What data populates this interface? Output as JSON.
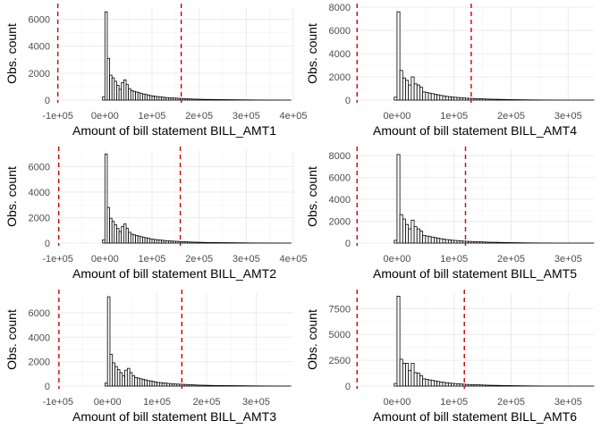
{
  "chart_data": [
    {
      "type": "bar",
      "title": "",
      "xlabel": "Amount of bill statement BILL_AMT1",
      "ylabel": "Obs. count",
      "xlim": [
        -105000,
        400000
      ],
      "ylim": [
        0,
        6900
      ],
      "xticks": [
        -100000,
        0,
        100000,
        200000,
        300000,
        400000
      ],
      "xtick_labels": [
        "-1e+05",
        "0e+00",
        "1e+05",
        "2e+05",
        "3e+05",
        "4e+05"
      ],
      "yticks": [
        0,
        2000,
        4000,
        6000
      ],
      "ytick_labels": [
        "0",
        "2000",
        "4000",
        "6000"
      ],
      "vlines": [
        -100000,
        162000
      ],
      "bin_start": -5000,
      "bin_width": 5000,
      "counts": [
        250,
        6550,
        3100,
        1850,
        1650,
        1400,
        1100,
        800,
        1300,
        1500,
        1150,
        850,
        700,
        650,
        600,
        550,
        500,
        450,
        420,
        380,
        330,
        300,
        280,
        260,
        240,
        220,
        200,
        180,
        170,
        160,
        150,
        140,
        130,
        120,
        110,
        100,
        90,
        80,
        75,
        70,
        65,
        60,
        55,
        50,
        48,
        46,
        44,
        42,
        40,
        38,
        36,
        34,
        32,
        30,
        28,
        26,
        24,
        22,
        20,
        18,
        16,
        14,
        12,
        10,
        10,
        8,
        8,
        6,
        6,
        5,
        5,
        4,
        4,
        3,
        3,
        3,
        2,
        2,
        2,
        2
      ]
    },
    {
      "type": "bar",
      "title": "",
      "xlabel": "Amount of bill statement BILL_AMT4",
      "ylabel": "Obs. count",
      "xlim": [
        -72000,
        345000
      ],
      "ylim": [
        0,
        8000
      ],
      "xticks": [
        0,
        100000,
        200000,
        300000
      ],
      "xtick_labels": [
        "0e+00",
        "1e+05",
        "2e+05",
        "3e+05"
      ],
      "yticks": [
        0,
        2000,
        4000,
        6000,
        8000
      ],
      "ytick_labels": [
        "0",
        "2000",
        "4000",
        "6000",
        "8000"
      ],
      "vlines": [
        -70000,
        130000
      ],
      "bin_start": -5000,
      "bin_width": 5000,
      "counts": [
        250,
        7600,
        2550,
        1900,
        1700,
        1300,
        2000,
        1400,
        1300,
        1100,
        700,
        650,
        600,
        550,
        500,
        450,
        400,
        360,
        320,
        290,
        260,
        240,
        220,
        200,
        180,
        160,
        150,
        140,
        130,
        120,
        110,
        100,
        90,
        80,
        75,
        70,
        65,
        60,
        55,
        50,
        45,
        40,
        36,
        32,
        28,
        24,
        20,
        18,
        16,
        14,
        12,
        10,
        8,
        6,
        5,
        4,
        3,
        3,
        2,
        2,
        2,
        2,
        1,
        1,
        1,
        1,
        1,
        1,
        1,
        1
      ]
    },
    {
      "type": "bar",
      "title": "",
      "xlabel": "Amount of bill statement BILL_AMT2",
      "ylabel": "Obs. count",
      "xlim": [
        -105000,
        400000
      ],
      "ylim": [
        0,
        7300
      ],
      "xticks": [
        -100000,
        0,
        100000,
        200000,
        300000,
        400000
      ],
      "xtick_labels": [
        "-1e+05",
        "0e+00",
        "1e+05",
        "2e+05",
        "3e+05",
        "4e+05"
      ],
      "yticks": [
        0,
        2000,
        4000,
        6000
      ],
      "ytick_labels": [
        "0",
        "2000",
        "4000",
        "6000"
      ],
      "vlines": [
        -98000,
        160000
      ],
      "bin_start": -5000,
      "bin_width": 5000,
      "counts": [
        250,
        7000,
        2800,
        1950,
        1700,
        1450,
        1150,
        900,
        1300,
        1500,
        1150,
        850,
        700,
        650,
        600,
        550,
        500,
        450,
        420,
        380,
        330,
        300,
        280,
        260,
        240,
        220,
        200,
        180,
        170,
        160,
        150,
        140,
        130,
        120,
        110,
        100,
        90,
        80,
        75,
        70,
        65,
        60,
        55,
        50,
        48,
        46,
        44,
        42,
        40,
        38,
        36,
        34,
        32,
        30,
        28,
        26,
        24,
        22,
        20,
        18,
        16,
        14,
        12,
        10,
        10,
        8,
        8,
        6,
        6,
        5,
        5,
        4,
        4,
        3,
        3,
        3,
        2,
        2,
        2,
        2
      ]
    },
    {
      "type": "bar",
      "title": "",
      "xlabel": "Amount of bill statement BILL_AMT5",
      "ylabel": "Obs. count",
      "xlim": [
        -72000,
        345000
      ],
      "ylim": [
        0,
        8500
      ],
      "xticks": [
        0,
        100000,
        200000,
        300000
      ],
      "xtick_labels": [
        "0e+00",
        "1e+05",
        "2e+05",
        "3e+05"
      ],
      "yticks": [
        0,
        2000,
        4000,
        6000,
        8000
      ],
      "ytick_labels": [
        "0",
        "2000",
        "4000",
        "6000",
        "8000"
      ],
      "vlines": [
        -70000,
        120000
      ],
      "bin_start": -5000,
      "bin_width": 5000,
      "counts": [
        250,
        8100,
        2600,
        2200,
        1700,
        1300,
        2100,
        1500,
        1300,
        1100,
        700,
        650,
        600,
        550,
        500,
        450,
        400,
        360,
        320,
        290,
        260,
        240,
        220,
        200,
        180,
        160,
        150,
        140,
        130,
        120,
        110,
        100,
        90,
        80,
        75,
        70,
        65,
        60,
        55,
        50,
        45,
        40,
        36,
        32,
        28,
        24,
        20,
        18,
        16,
        14,
        12,
        10,
        8,
        6,
        5,
        4,
        3,
        3,
        2,
        2,
        2,
        2,
        1,
        1,
        1,
        1,
        1,
        1,
        1,
        1
      ]
    },
    {
      "type": "bar",
      "title": "",
      "xlabel": "Amount of bill statement BILL_AMT3",
      "ylabel": "Obs. count",
      "xlim": [
        -105000,
        375000
      ],
      "ylim": [
        0,
        7600
      ],
      "xticks": [
        -100000,
        0,
        100000,
        200000,
        300000
      ],
      "xtick_labels": [
        "-1e+05",
        "0e+00",
        "1e+05",
        "2e+05",
        "3e+05"
      ],
      "yticks": [
        0,
        2000,
        4000,
        6000
      ],
      "ytick_labels": [
        "0",
        "2000",
        "4000",
        "6000"
      ],
      "vlines": [
        -98000,
        150000
      ],
      "bin_start": -5000,
      "bin_width": 5000,
      "counts": [
        250,
        7300,
        2600,
        1900,
        1600,
        1350,
        1100,
        850,
        1300,
        1450,
        1100,
        850,
        700,
        650,
        600,
        550,
        500,
        450,
        420,
        380,
        330,
        300,
        280,
        260,
        240,
        220,
        200,
        180,
        170,
        160,
        150,
        140,
        130,
        120,
        110,
        100,
        90,
        80,
        75,
        70,
        65,
        60,
        55,
        50,
        48,
        46,
        44,
        42,
        40,
        38,
        36,
        34,
        32,
        30,
        28,
        26,
        24,
        22,
        20,
        18,
        16,
        14,
        12,
        10,
        10,
        8,
        8,
        6,
        6,
        5,
        5,
        4,
        4,
        3,
        3
      ]
    },
    {
      "type": "bar",
      "title": "",
      "xlabel": "Amount of bill statement BILL_AMT6",
      "ylabel": "Obs. count",
      "xlim": [
        -72000,
        345000
      ],
      "ylim": [
        0,
        9000
      ],
      "xticks": [
        0,
        100000,
        200000,
        300000
      ],
      "xtick_labels": [
        "0e+00",
        "1e+05",
        "2e+05",
        "3e+05"
      ],
      "yticks": [
        0,
        2500,
        5000,
        7500
      ],
      "ytick_labels": [
        "0",
        "2500",
        "5000",
        "7500"
      ],
      "vlines": [
        -70000,
        118000
      ],
      "bin_start": -5000,
      "bin_width": 5000,
      "counts": [
        250,
        8700,
        2600,
        2200,
        2200,
        1500,
        2200,
        1300,
        1250,
        1000,
        700,
        650,
        600,
        550,
        500,
        450,
        400,
        360,
        320,
        290,
        260,
        240,
        220,
        200,
        180,
        160,
        150,
        140,
        130,
        120,
        110,
        100,
        90,
        80,
        75,
        70,
        65,
        60,
        55,
        50,
        45,
        40,
        36,
        32,
        28,
        24,
        20,
        18,
        16,
        14,
        12,
        10,
        8,
        6,
        5,
        4,
        3,
        3,
        2,
        2,
        2,
        2,
        1,
        1,
        1,
        1,
        1,
        1,
        1,
        1
      ]
    }
  ]
}
